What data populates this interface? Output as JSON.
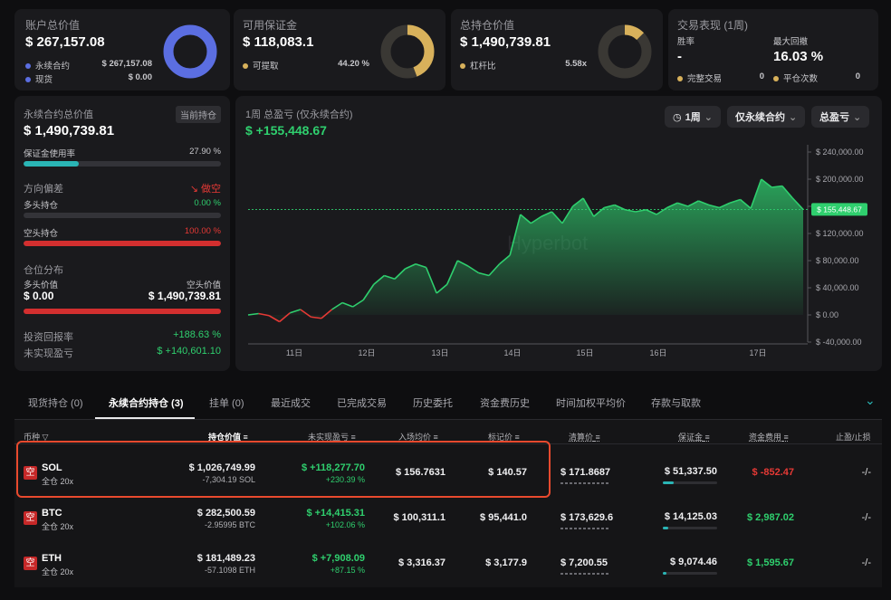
{
  "summary": {
    "account": {
      "title": "账户总价值",
      "value": "$ 267,157.08",
      "r1_label": "永续合约",
      "r1_value": "$ 267,157.08",
      "r2_label": "现货",
      "r2_value": "$ 0.00"
    },
    "margin": {
      "title": "可用保证金",
      "value": "$ 118,083.1",
      "r1_label": "可提取",
      "r1_value": "44.20 %"
    },
    "position": {
      "title": "总持仓价值",
      "value": "$ 1,490,739.81",
      "r1_label": "杠杆比",
      "r1_value": "5.58x"
    },
    "performance": {
      "title": "交易表现 (1周)",
      "winrate_label": "胜率",
      "winrate_value": "-",
      "drawdown_label": "最大回撤",
      "drawdown_value": "16.03 %",
      "closed_label": "完整交易",
      "closed_value": "0",
      "flat_label": "平仓次数",
      "flat_value": "0"
    }
  },
  "colors": {
    "accent_blue": "#5b6ee1",
    "gold": "#d8b15b",
    "green": "#2fcf6e",
    "red": "#e53935",
    "teal": "#2ab5b5"
  },
  "left_panel": {
    "title": "永续合约总价值",
    "tag": "当前持仓",
    "value": "$ 1,490,739.81",
    "margin_usage_label": "保证金使用率",
    "margin_usage_value": "27.90 %",
    "margin_usage_pct": 27.9,
    "bias_label": "方向偏差",
    "bias_value": "做空",
    "long_label": "多头持仓",
    "long_value": "0.00 %",
    "long_pct": 0,
    "short_label": "空头持仓",
    "short_value": "100.00 %",
    "short_pct": 100,
    "dist_label": "仓位分布",
    "long_val_label": "多头价值",
    "long_val": "$ 0.00",
    "short_val_label": "空头价值",
    "short_val": "$ 1,490,739.81",
    "roi_label": "投资回报率",
    "roi_value": "+188.63 %",
    "upnl_label": "未实现盈亏",
    "upnl_value": "$ +140,601.10"
  },
  "chart_panel": {
    "title": "1周 总盈亏 (仅永续合约)",
    "value": "$ +155,448.67",
    "filter_period": "1周",
    "filter_scope": "仅永续合约",
    "filter_metric": "总盈亏",
    "watermark": "Hyperbot"
  },
  "chart_data": {
    "type": "area",
    "x_ticks": [
      "11日",
      "12日",
      "13日",
      "14日",
      "15日",
      "16日",
      "17日"
    ],
    "y_ticks": [
      "$ 240,000.00",
      "$ 200,000.00",
      "$ 160,000.00",
      "$ 120,000.00",
      "$ 80,000.00",
      "$ 40,000.00",
      "$ 0.00",
      "$ -40,000.00"
    ],
    "ylim": [
      -40000,
      260000
    ],
    "current_label": "$ 155,448.67",
    "current_value": 155448.67,
    "values": [
      0,
      2000,
      -1000,
      -10000,
      3000,
      8000,
      -3000,
      -5000,
      8000,
      18000,
      12000,
      22000,
      45000,
      58000,
      53000,
      68000,
      75000,
      70000,
      32000,
      45000,
      80000,
      72000,
      62000,
      58000,
      75000,
      88000,
      148000,
      135000,
      145000,
      152000,
      135000,
      160000,
      172000,
      145000,
      158000,
      162000,
      155000,
      152000,
      155000,
      148000,
      158000,
      165000,
      160000,
      168000,
      162000,
      158000,
      165000,
      170000,
      157000,
      200000,
      188000,
      190000,
      172000,
      155448
    ]
  },
  "tabs": [
    {
      "label": "现货持仓 (0)"
    },
    {
      "label": "永续合约持仓 (3)"
    },
    {
      "label": "挂单 (0)"
    },
    {
      "label": "最近成交"
    },
    {
      "label": "已完成交易"
    },
    {
      "label": "历史委托"
    },
    {
      "label": "资金费历史"
    },
    {
      "label": "时间加权平均价"
    },
    {
      "label": "存款与取款"
    }
  ],
  "table": {
    "headers": {
      "coin": "币种",
      "value": "持仓价值",
      "upnl": "未实现盈亏",
      "entry": "入场均价",
      "mark": "标记价",
      "liq": "清算价",
      "margin": "保证金",
      "funding": "资金费用",
      "tpsl": "止盈/止损"
    },
    "rows": [
      {
        "badge": "空",
        "coin": "SOL",
        "mode": "全仓 20x",
        "value": "$ 1,026,749.99",
        "size": "-7,304.19 SOL",
        "upnl": "$ +118,277.70",
        "upnl_pct": "+230.39 %",
        "entry": "$ 156.7631",
        "mark": "$ 140.57",
        "liq": "$ 171.8687",
        "margin": "$ 51,337.50",
        "margin_pct": 20,
        "funding": "$ -852.47",
        "tpsl": "-/-"
      },
      {
        "badge": "空",
        "coin": "BTC",
        "mode": "全仓 20x",
        "value": "$ 282,500.59",
        "size": "-2.95995 BTC",
        "upnl": "$ +14,415.31",
        "upnl_pct": "+102.06 %",
        "entry": "$ 100,311.1",
        "mark": "$ 95,441.0",
        "liq": "$ 173,629.6",
        "margin": "$ 14,125.03",
        "margin_pct": 10,
        "funding": "$ 2,987.02",
        "tpsl": "-/-"
      },
      {
        "badge": "空",
        "coin": "ETH",
        "mode": "全仓 20x",
        "value": "$ 181,489.23",
        "size": "-57.1098 ETH",
        "upnl": "$ +7,908.09",
        "upnl_pct": "+87.15 %",
        "entry": "$ 3,316.37",
        "mark": "$ 3,177.9",
        "liq": "$ 7,200.55",
        "margin": "$ 9,074.46",
        "margin_pct": 6,
        "funding": "$ 1,595.67",
        "tpsl": "-/-"
      }
    ]
  }
}
